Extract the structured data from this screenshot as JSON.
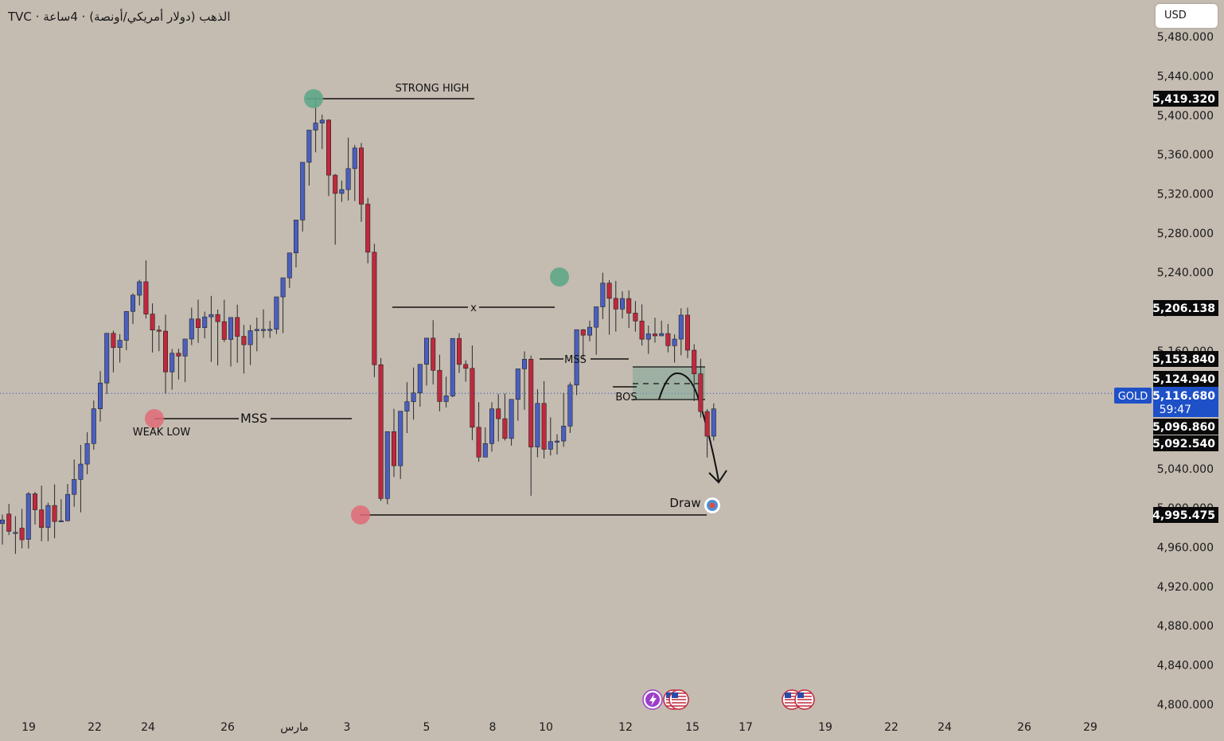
{
  "header": {
    "title": "TVC · الذهب (دولار أمريكي/أونصة) · 4ساعة"
  },
  "currency_button": {
    "label": "USD"
  },
  "price_tags": {
    "symbol": "GOLD",
    "current": "5,116.680",
    "countdown": "59:47",
    "levels": [
      "5,419.320",
      "5,206.138",
      "5,153.840",
      "5,124.940",
      "5,096.860",
      "5,092.540",
      "4,995.475"
    ]
  },
  "colors": {
    "background": "#c4bbb1",
    "bull": "#4a5fbf",
    "bear": "#c0283c",
    "accent": "#1e50c8",
    "zone": "#7fa896"
  },
  "chart_data": {
    "type": "candlestick",
    "timeframe": "4H",
    "y_ticks": [
      "5,480.000",
      "5,440.000",
      "5,400.000",
      "5,360.000",
      "5,320.000",
      "5,280.000",
      "5,240.000",
      "5,200.000",
      "5,160.000",
      "5,120.000",
      "5,080.000",
      "5,040.000",
      "5,000.000",
      "4,960.000",
      "4,920.000",
      "4,880.000",
      "4,840.000",
      "4,800.000"
    ],
    "ylim": [
      4790,
      5490
    ],
    "x_ticks": [
      "19",
      "22",
      "24",
      "26",
      "مارس",
      "3",
      "5",
      "8",
      "10",
      "12",
      "15",
      "17",
      "19",
      "22",
      "24",
      "26",
      "29"
    ],
    "candles": [
      [
        4984.1,
        4993.3,
        4987.8,
        4962.7
      ],
      [
        4993.8,
        5004.1,
        4976.2,
        4972.4
      ],
      [
        4975.2,
        4991.6,
        4975.2,
        4953.2
      ],
      [
        4979.4,
        4999.0,
        4967.6,
        4958.8
      ],
      [
        4968.0,
        5016.2,
        5014.4,
        4958.7
      ],
      [
        5014.4,
        5016.4,
        4998.1,
        4983.0
      ],
      [
        4998.1,
        5022.7,
        4980.1,
        4966.0
      ],
      [
        4980.1,
        5005.3,
        5002.5,
        4966.2
      ],
      [
        5002.5,
        5024.0,
        4986.2,
        4969.2
      ],
      [
        4986.2,
        5008.9,
        4987.0,
        4985.7
      ],
      [
        4987.0,
        5024.5,
        5013.8,
        4986.3
      ],
      [
        5013.8,
        5049.4,
        5029.0,
        5001.2
      ],
      [
        5029.0,
        5064.2,
        5044.7,
        4995.5
      ],
      [
        5044.7,
        5077.1,
        5065.6,
        5034.3
      ],
      [
        5065.6,
        5109.5,
        5101.0,
        5059.3
      ],
      [
        5101.0,
        5139.4,
        5127.3,
        5087.9
      ],
      [
        5127.3,
        5177.9,
        5177.9,
        5116.1
      ],
      [
        5177.9,
        5180.6,
        5163.4,
        5138.2
      ],
      [
        5163.4,
        5177.1,
        5170.8,
        5148.2
      ],
      [
        5170.8,
        5199.5,
        5200.2,
        5160.7
      ],
      [
        5200.2,
        5218.6,
        5216.7,
        5187.2
      ],
      [
        5216.7,
        5232.4,
        5230.4,
        5206.3
      ],
      [
        5230.4,
        5252.1,
        5197.5,
        5193.0
      ],
      [
        5197.5,
        5208.4,
        5181.2,
        5158.3
      ],
      [
        5181.2,
        5185.8,
        5180.1,
        5159.7
      ],
      [
        5180.1,
        5197.0,
        5138.6,
        5116.6
      ],
      [
        5138.6,
        5162.0,
        5157.6,
        5120.5
      ],
      [
        5157.6,
        5162.2,
        5154.7,
        5130.8
      ],
      [
        5154.7,
        5171.8,
        5172.1,
        5128.2
      ],
      [
        5172.1,
        5204.0,
        5192.5,
        5165.9
      ],
      [
        5192.5,
        5212.2,
        5183.7,
        5168.2
      ],
      [
        5183.7,
        5200.0,
        5194.6,
        5172.8
      ],
      [
        5194.6,
        5216.0,
        5197.0,
        5148.8
      ],
      [
        5197.0,
        5202.1,
        5189.8,
        5145.1
      ],
      [
        5189.8,
        5212.1,
        5171.6,
        5169.1
      ],
      [
        5171.6,
        5188.0,
        5194.0,
        5144.1
      ],
      [
        5194.0,
        5207.0,
        5174.8,
        5147.9
      ],
      [
        5174.8,
        5186.4,
        5166.3,
        5136.9
      ],
      [
        5166.3,
        5186.4,
        5180.6,
        5145.6
      ],
      [
        5180.6,
        5193.9,
        5181.9,
        5159.6
      ],
      [
        5181.9,
        5202.2,
        5181.9,
        5173.2
      ],
      [
        5181.9,
        5190.6,
        5182.0,
        5173.1
      ],
      [
        5182.0,
        5212.5,
        5215.0,
        5177.2
      ],
      [
        5215.0,
        5227.7,
        5234.4,
        5178.2
      ],
      [
        5234.4,
        5258.4,
        5259.8,
        5224.1
      ],
      [
        5259.8,
        5286.7,
        5293.3,
        5245.0
      ],
      [
        5293.3,
        5336.5,
        5352.1,
        5281.6
      ],
      [
        5352.1,
        5367.9,
        5384.9,
        5328.5
      ],
      [
        5384.9,
        5418.7,
        5392.1,
        5362.3
      ],
      [
        5392.1,
        5400.7,
        5395.1,
        5365.6
      ],
      [
        5395.1,
        5396.0,
        5339.0,
        5317.8
      ],
      [
        5339.0,
        5340.1,
        5320.4,
        5268.2
      ],
      [
        5320.4,
        5333.5,
        5324.3,
        5311.7
      ],
      [
        5324.3,
        5377.2,
        5345.7,
        5313.2
      ],
      [
        5345.7,
        5369.8,
        5366.7,
        5312.6
      ],
      [
        5366.7,
        5371.8,
        5309.5,
        5291.5
      ],
      [
        5309.5,
        5315.8,
        5260.5,
        5249.2
      ],
      [
        5260.5,
        5269.0,
        5145.9,
        5133.2
      ],
      [
        5145.9,
        5152.7,
        5009.6,
        5007.0
      ],
      [
        5009.6,
        5071.4,
        5077.7,
        5003.8
      ],
      [
        5077.7,
        5101.0,
        5043.0,
        5031.6
      ],
      [
        5043.0,
        5071.3,
        5098.6,
        5029.5
      ],
      [
        5098.6,
        5128.1,
        5108.2,
        5076.3
      ],
      [
        5108.2,
        5143.1,
        5117.1,
        5089.9
      ],
      [
        5117.1,
        5141.6,
        5146.3,
        5103.1
      ],
      [
        5146.3,
        5165.2,
        5173.0,
        5124.7
      ],
      [
        5173.0,
        5191.3,
        5140.2,
        5125.7
      ],
      [
        5140.2,
        5156.0,
        5108.4,
        5098.4
      ],
      [
        5108.4,
        5133.7,
        5114.1,
        5102.4
      ],
      [
        5114.1,
        5141.5,
        5172.7,
        5112.8
      ],
      [
        5172.7,
        5178.1,
        5146.2,
        5137.5
      ],
      [
        5146.2,
        5150.3,
        5142.2,
        5128.6
      ],
      [
        5142.2,
        5165.5,
        5082.2,
        5069.0
      ],
      [
        5082.2,
        5107.7,
        5051.8,
        5047.1
      ],
      [
        5051.8,
        5082.1,
        5065.6,
        5053.4
      ],
      [
        5065.6,
        5107.7,
        5100.9,
        5057.4
      ],
      [
        5100.9,
        5116.0,
        5090.9,
        5067.8
      ],
      [
        5090.9,
        5116.7,
        5070.8,
        5068.7
      ],
      [
        5070.8,
        5099.6,
        5110.6,
        5063.5
      ],
      [
        5110.6,
        5141.1,
        5141.7,
        5089.0
      ],
      [
        5141.7,
        5159.5,
        5151.5,
        5100.0
      ],
      [
        5151.5,
        5155.2,
        5062.1,
        5012.4
      ],
      [
        5062.1,
        5121.0,
        5106.5,
        5051.6
      ],
      [
        5106.5,
        5129.2,
        5059.8,
        5050.4
      ],
      [
        5059.8,
        5092.3,
        5067.6,
        5053.5
      ],
      [
        5067.6,
        5075.0,
        5068.2,
        5054.5
      ],
      [
        5068.2,
        5117.2,
        5083.4,
        5062.2
      ],
      [
        5083.4,
        5127.9,
        5125.2,
        5076.4
      ],
      [
        5125.2,
        5181.4,
        5181.6,
        5114.9
      ],
      [
        5181.6,
        5182.1,
        5176.0,
        5152.1
      ],
      [
        5176.0,
        5190.8,
        5184.1,
        5169.8
      ],
      [
        5184.1,
        5202.7,
        5204.9,
        5156.0
      ],
      [
        5204.9,
        5239.6,
        5229.0,
        5192.4
      ],
      [
        5229.0,
        5232.0,
        5213.5,
        5176.5
      ],
      [
        5213.5,
        5231.3,
        5202.6,
        5179.7
      ],
      [
        5202.6,
        5220.7,
        5213.3,
        5193.0
      ],
      [
        5213.3,
        5221.6,
        5198.5,
        5183.4
      ],
      [
        5198.5,
        5210.7,
        5190.4,
        5179.6
      ],
      [
        5190.4,
        5207.4,
        5171.9,
        5165.4
      ],
      [
        5171.9,
        5185.8,
        5177.3,
        5156.9
      ],
      [
        5177.3,
        5193.7,
        5175.3,
        5168.4
      ],
      [
        5175.3,
        5190.8,
        5177.6,
        5176.0
      ],
      [
        5177.6,
        5187.5,
        5165.3,
        5158.5
      ],
      [
        5165.3,
        5176.8,
        5172.0,
        5148.1
      ],
      [
        5172.0,
        5203.3,
        5196.4,
        5155.5
      ],
      [
        5196.4,
        5204.1,
        5160.7,
        5152.6
      ],
      [
        5160.7,
        5166.8,
        5136.6,
        5108.8
      ],
      [
        5136.6,
        5152.0,
        5098.2,
        5092.1
      ],
      [
        5098.2,
        5100.7,
        5073.1,
        5051.4
      ],
      [
        5073.1,
        5106.5,
        5100.9,
        5068.6
      ]
    ],
    "annotations": [
      {
        "type": "label",
        "text": "STRONG HIGH"
      },
      {
        "type": "label",
        "text": "WEAK LOW"
      },
      {
        "type": "label",
        "text": "MSS"
      },
      {
        "type": "label",
        "text": "MSS"
      },
      {
        "type": "label",
        "text": "x"
      },
      {
        "type": "label",
        "text": "BOS"
      },
      {
        "type": "label",
        "text": "Draw"
      }
    ],
    "grid": false
  }
}
